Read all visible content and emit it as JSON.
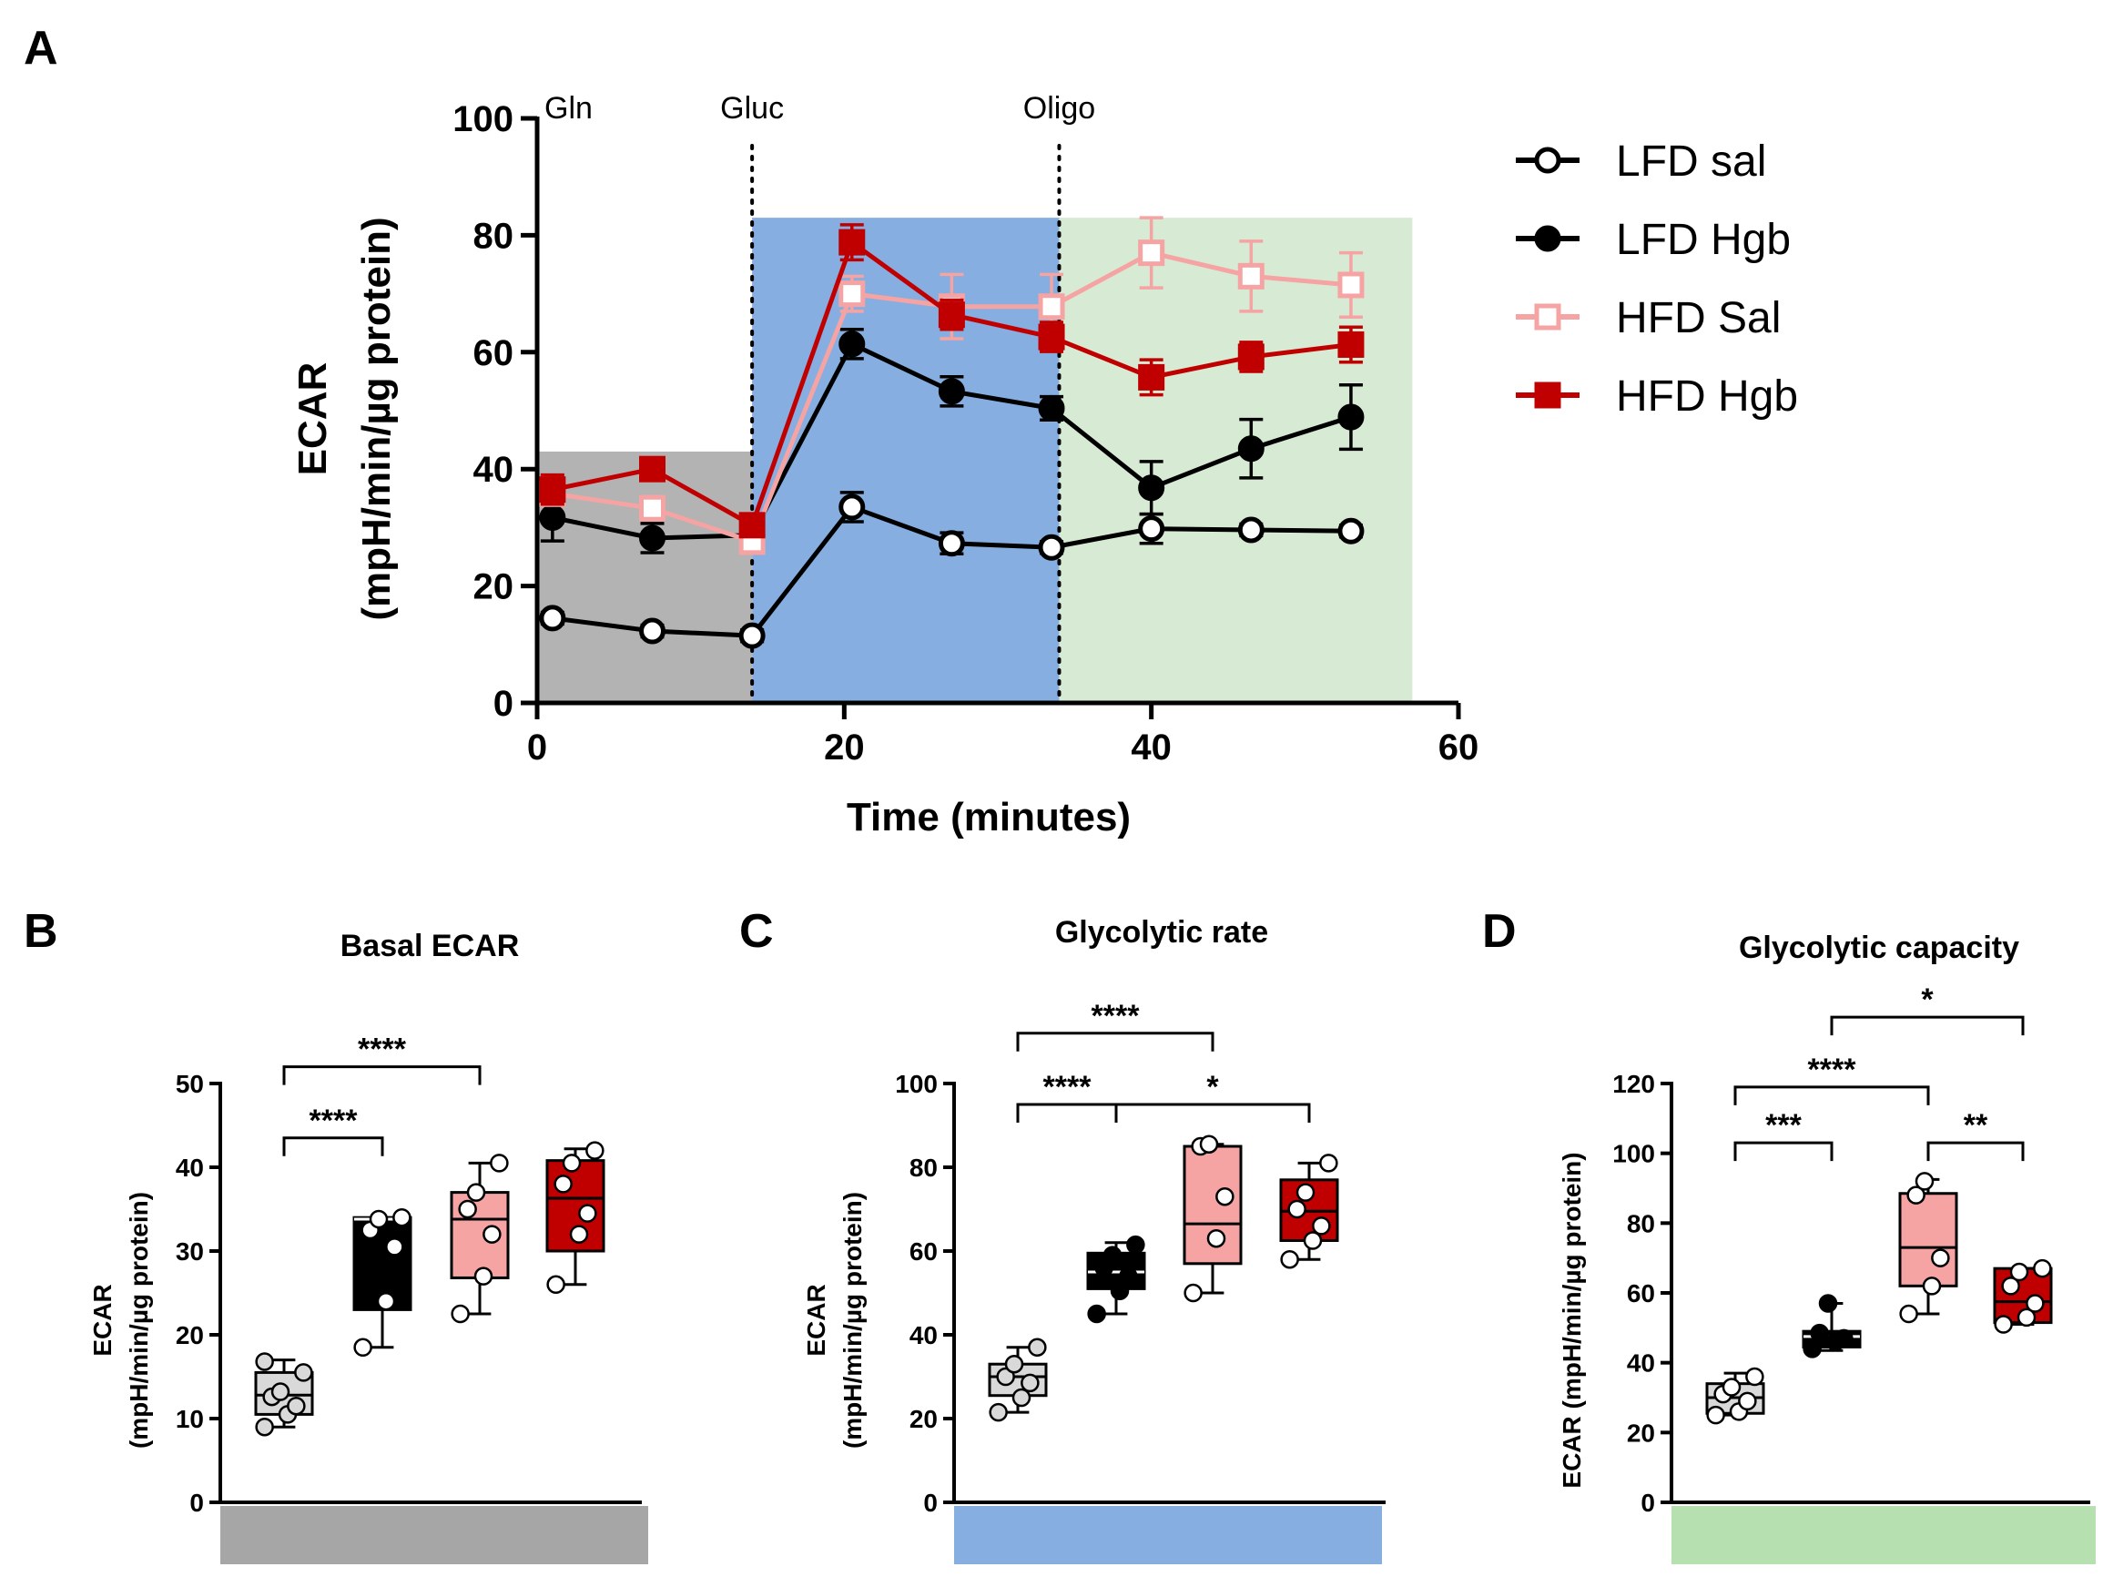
{
  "panels": [
    {
      "id": "A"
    },
    {
      "id": "B"
    },
    {
      "id": "C"
    },
    {
      "id": "D"
    }
  ],
  "chart_data": [
    {
      "panel": "A",
      "type": "line",
      "xlabel": "Time (minutes)",
      "ylabel_line1": "ECAR",
      "ylabel_line2": "(mpH/min/µg protein)",
      "xlim": [
        0,
        60
      ],
      "ylim": [
        0,
        100
      ],
      "xticks": [
        0,
        20,
        40,
        60
      ],
      "yticks": [
        0,
        20,
        40,
        60,
        80,
        100
      ],
      "injections": [
        {
          "label": "Gln",
          "x": 0,
          "dotted": false
        },
        {
          "label": "Gluc",
          "x": 14,
          "dotted": true
        },
        {
          "label": "Oligo",
          "x": 34,
          "dotted": true
        }
      ],
      "shaded_regions": [
        {
          "x0": 0,
          "x1": 14,
          "y1": 43,
          "color": "#b3b3b3"
        },
        {
          "x0": 14,
          "x1": 34,
          "y1": 83,
          "color": "#86aee0"
        },
        {
          "x0": 34,
          "x1": 57,
          "y1": 83,
          "color": "#d7ebd4"
        }
      ],
      "x": [
        1,
        7.5,
        14,
        20.5,
        27,
        33.5,
        40,
        46.5,
        53
      ],
      "series": [
        {
          "name": "LFD sal",
          "color": "#000000",
          "marker": "circle",
          "filled": false,
          "values": [
            14.5,
            12.3,
            11.5,
            33.5,
            27.3,
            26.6,
            29.8,
            29.6,
            29.4
          ],
          "errors": [
            1,
            1,
            1,
            2.5,
            1.8,
            1,
            2.5,
            1,
            1
          ]
        },
        {
          "name": "LFD Hgb",
          "color": "#000000",
          "marker": "circle",
          "filled": true,
          "values": [
            31.7,
            28.2,
            28.7,
            61.4,
            53.3,
            50.4,
            36.8,
            43.5,
            48.9
          ],
          "errors": [
            4,
            2.5,
            1.5,
            2.5,
            2.5,
            2,
            4.5,
            5,
            5.5
          ]
        },
        {
          "name": "HFD Sal",
          "color": "#f5a3a3",
          "marker": "square",
          "filled": false,
          "values": [
            35.8,
            33.3,
            27.6,
            70.0,
            67.8,
            67.8,
            77.0,
            73.0,
            71.5
          ],
          "errors": [
            2,
            2,
            2,
            3,
            5.5,
            5.5,
            6,
            6,
            5.5
          ]
        },
        {
          "name": "HFD Hgb",
          "color": "#c00000",
          "marker": "square",
          "filled": true,
          "values": [
            36.5,
            40.0,
            30.4,
            78.8,
            66.4,
            62.6,
            55.7,
            59.2,
            61.3
          ],
          "errors": [
            2.5,
            1,
            1.5,
            3,
            2.5,
            2.5,
            3,
            2.5,
            3
          ]
        }
      ],
      "legend": {
        "position": "right",
        "entries": [
          "LFD sal",
          "LFD Hgb",
          "HFD Sal",
          "HFD Hgb"
        ]
      }
    },
    {
      "panel": "B",
      "type": "box",
      "title": "Basal ECAR",
      "ylabel_line1": "ECAR",
      "ylabel_line2": "(mpH/min/µg protein)",
      "ylim": [
        0,
        50
      ],
      "yticks": [
        0,
        10,
        20,
        30,
        40,
        50
      ],
      "bar_color": "#a6a6a6",
      "groups": [
        {
          "name": "LFD sal",
          "fill": "#d9d9d9",
          "point": "#d9d9d9",
          "min": 9,
          "q1": 10.5,
          "median": 12.8,
          "q3": 15.5,
          "max": 17,
          "points": [
            9,
            10.5,
            11.5,
            12.6,
            13.2,
            15.5,
            16.8
          ]
        },
        {
          "name": "LFD Hgb",
          "fill": "#000000",
          "point": "#ffffff",
          "min": 18.5,
          "q1": 23,
          "median": 33.8,
          "q3": 34,
          "max": 34,
          "points": [
            18.5,
            24,
            30.5,
            32.5,
            33.8,
            34
          ]
        },
        {
          "name": "HFD Sal",
          "fill": "#f5a3a3",
          "point": "#ffffff",
          "min": 22.5,
          "q1": 26.8,
          "median": 33.8,
          "q3": 37,
          "max": 40.5,
          "points": [
            22.5,
            27,
            32,
            35,
            37,
            40.5
          ]
        },
        {
          "name": "HFD Hgb",
          "fill": "#c00000",
          "point": "#ffffff",
          "min": 26,
          "q1": 30,
          "median": 36.3,
          "q3": 40.8,
          "max": 42.2,
          "points": [
            26,
            32,
            34.5,
            38,
            40.5,
            42
          ]
        }
      ],
      "significance": [
        {
          "from": 0,
          "to": 1,
          "label": "****",
          "y": 43.5
        },
        {
          "from": 0,
          "to": 2,
          "label": "****",
          "y": 52
        }
      ]
    },
    {
      "panel": "C",
      "type": "box",
      "title": "Glycolytic rate",
      "ylabel_line1": "ECAR",
      "ylabel_line2": "(mpH/min/µg protein)",
      "ylim": [
        0,
        100
      ],
      "yticks": [
        0,
        20,
        40,
        60,
        80,
        100
      ],
      "bar_color": "#86aee0",
      "groups": [
        {
          "name": "LFD sal",
          "fill": "#d9d9d9",
          "point": "#d9d9d9",
          "min": 21.5,
          "q1": 25.5,
          "median": 30,
          "q3": 33,
          "max": 37,
          "points": [
            21.5,
            25,
            28.5,
            30,
            33,
            37
          ]
        },
        {
          "name": "LFD Hgb",
          "fill": "#000000",
          "point": "#000000",
          "min": 45,
          "q1": 51,
          "median": 55,
          "q3": 59.5,
          "max": 62,
          "points": [
            45,
            50.5,
            54,
            56,
            59,
            61.5
          ]
        },
        {
          "name": "HFD Sal",
          "fill": "#f5a3a3",
          "point": "#ffffff",
          "min": 50,
          "q1": 57,
          "median": 66.5,
          "q3": 85,
          "max": 85.5,
          "points": [
            50,
            63,
            73,
            85,
            85.5
          ]
        },
        {
          "name": "HFD Hgb",
          "fill": "#c00000",
          "point": "#ffffff",
          "min": 58,
          "q1": 62.5,
          "median": 69.5,
          "q3": 77,
          "max": 81,
          "points": [
            58,
            62.5,
            66,
            70,
            74,
            81
          ]
        }
      ],
      "significance": [
        {
          "from": 0,
          "to": 1,
          "label": "****",
          "y": 95
        },
        {
          "from": 0,
          "to": 2,
          "label": "****",
          "y": 112
        },
        {
          "from": 1,
          "to": 3,
          "label": "*",
          "y": 95
        }
      ]
    },
    {
      "panel": "D",
      "type": "box",
      "title": "Glycolytic capacity",
      "ylabel_line1": "ECAR (mpH/min/µg protein)",
      "ylim": [
        0,
        120
      ],
      "yticks": [
        0,
        20,
        40,
        60,
        80,
        100,
        120
      ],
      "bar_color": "#b7e0b0",
      "groups": [
        {
          "name": "LFD sal",
          "fill": "#d9d9d9",
          "point": "#ffffff",
          "min": 25,
          "q1": 25.5,
          "median": 30,
          "q3": 34,
          "max": 37,
          "points": [
            25,
            26,
            29,
            31,
            33,
            36
          ]
        },
        {
          "name": "LFD Hgb",
          "fill": "#000000",
          "point": "#000000",
          "min": 43.5,
          "q1": 44.5,
          "median": 47.5,
          "q3": 49,
          "max": 57,
          "points": [
            44,
            46,
            47,
            48.5,
            57
          ]
        },
        {
          "name": "HFD Sal",
          "fill": "#f5a3a3",
          "point": "#ffffff",
          "min": 54,
          "q1": 62,
          "median": 73,
          "q3": 88.5,
          "max": 92.5,
          "points": [
            54,
            62,
            70,
            88,
            92
          ]
        },
        {
          "name": "HFD Hgb",
          "fill": "#c00000",
          "point": "#ffffff",
          "min": 51,
          "q1": 51.5,
          "median": 57.5,
          "q3": 67,
          "max": 67,
          "points": [
            51,
            53,
            57,
            62,
            66,
            67
          ]
        }
      ],
      "significance": [
        {
          "from": 0,
          "to": 1,
          "label": "***",
          "y": 103
        },
        {
          "from": 0,
          "to": 2,
          "label": "****",
          "y": 119
        },
        {
          "from": 2,
          "to": 3,
          "label": "**",
          "y": 103
        },
        {
          "from": 1,
          "to": 3,
          "label": "*",
          "y": 139
        }
      ]
    }
  ]
}
